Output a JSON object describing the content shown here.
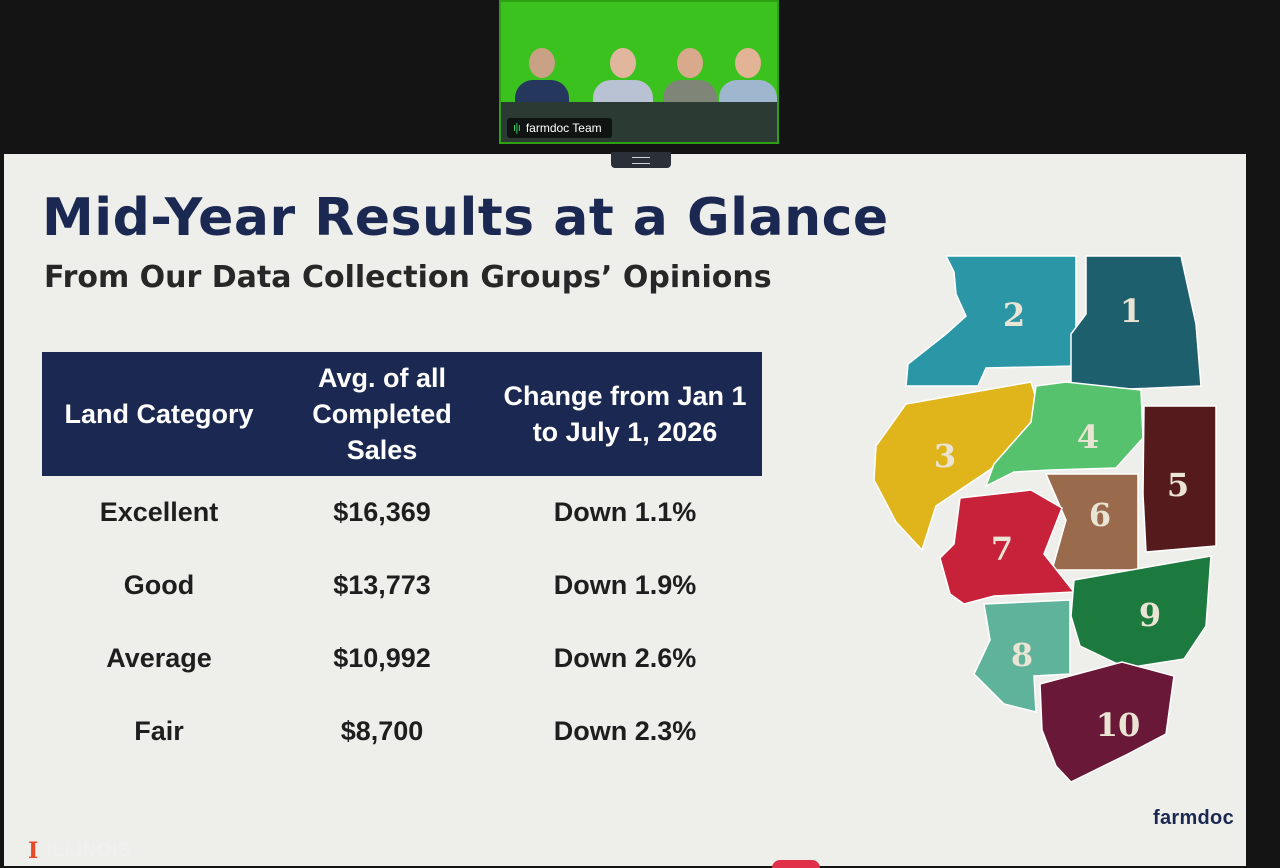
{
  "meeting": {
    "participant_tile_label": "farmdoc Team"
  },
  "slide": {
    "title": "Mid-Year Results at a Glance",
    "subtitle": "From Our Data Collection Groups’ Opinions",
    "table": {
      "headers": [
        "Land Category",
        "Avg. of all Completed Sales",
        "Change from Jan 1 to July 1, 2026"
      ],
      "rows": [
        [
          "Excellent",
          "$16,369",
          "Down 1.1%"
        ],
        [
          "Good",
          "$13,773",
          "Down 1.9%"
        ],
        [
          "Average",
          "$10,992",
          "Down 2.6%"
        ],
        [
          "Fair",
          "$8,700",
          "Down 2.3%"
        ]
      ]
    },
    "map": {
      "regions": [
        {
          "label": "1",
          "color": "#1e5f6e"
        },
        {
          "label": "2",
          "color": "#2a96a6"
        },
        {
          "label": "3",
          "color": "#e0b51c"
        },
        {
          "label": "4",
          "color": "#57c26d"
        },
        {
          "label": "5",
          "color": "#551a1c"
        },
        {
          "label": "6",
          "color": "#9a6a4c"
        },
        {
          "label": "7",
          "color": "#c8213a"
        },
        {
          "label": "8",
          "color": "#1d7a3e"
        },
        {
          "label": "9",
          "color": "#5fb39a"
        },
        {
          "label": "10",
          "color": "#6a1838"
        }
      ]
    },
    "brand": "farmdoc"
  },
  "footer": {
    "logo_mark": "I",
    "university": "ILLINOIS"
  },
  "colors": {
    "header_navy": "#1b2851",
    "video_green": "#3cc21e",
    "illinois_orange": "#e84a27"
  }
}
